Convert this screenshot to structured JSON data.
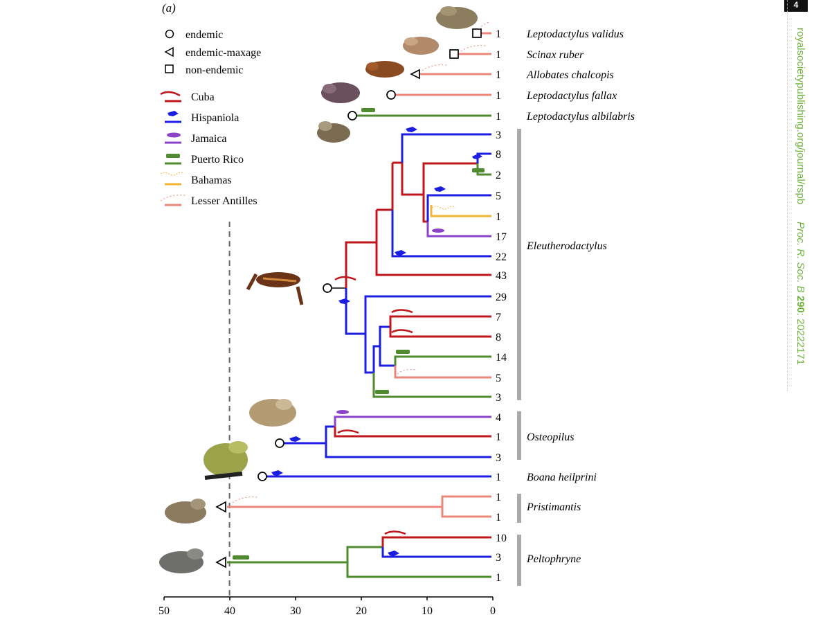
{
  "panel_label": "(a)",
  "page_number": "4",
  "side_text": {
    "site": "royalsocietypublishing.org/journal/rspb",
    "journal": "Proc. R. Soc. B",
    "volume": "290",
    "article": ": 20222171"
  },
  "legend": {
    "status": [
      {
        "symbol": "circle",
        "label": "endemic"
      },
      {
        "symbol": "triangle",
        "label": "endemic-maxage"
      },
      {
        "symbol": "square",
        "label": "non-endemic"
      }
    ],
    "regions": [
      {
        "label": "Cuba",
        "color": "#c0171c"
      },
      {
        "label": "Hispaniola",
        "color": "#1b1ee0"
      },
      {
        "label": "Jamaica",
        "color": "#8b43c8"
      },
      {
        "label": "Puerto Rico",
        "color": "#4f8a2e"
      },
      {
        "label": "Bahamas",
        "color": "#f2b632"
      },
      {
        "label": "Lesser Antilles",
        "color": "#e8877a"
      }
    ]
  },
  "axis": {
    "ticks": [
      "50",
      "40",
      "30",
      "20",
      "10",
      "0"
    ],
    "tick_values": [
      50,
      40,
      30,
      20,
      10,
      0
    ],
    "dashed_line_at": 40
  },
  "tips": [
    {
      "count": "1",
      "label": "Leptodactylus validus"
    },
    {
      "count": "1",
      "label": "Scinax ruber"
    },
    {
      "count": "1",
      "label": "Allobates chalcopis"
    },
    {
      "count": "1",
      "label": "Leptodactylus fallax"
    },
    {
      "count": "1",
      "label": "Leptodactylus albilabris"
    },
    {
      "count": "3",
      "label": ""
    },
    {
      "count": "8",
      "label": ""
    },
    {
      "count": "2",
      "label": ""
    },
    {
      "count": "5",
      "label": ""
    },
    {
      "count": "1",
      "label": ""
    },
    {
      "count": "17",
      "label": ""
    },
    {
      "count": "22",
      "label": ""
    },
    {
      "count": "43",
      "label": ""
    },
    {
      "count": "29",
      "label": ""
    },
    {
      "count": "7",
      "label": ""
    },
    {
      "count": "8",
      "label": ""
    },
    {
      "count": "14",
      "label": ""
    },
    {
      "count": "5",
      "label": ""
    },
    {
      "count": "3",
      "label": ""
    },
    {
      "count": "4",
      "label": ""
    },
    {
      "count": "1",
      "label": ""
    },
    {
      "count": "3",
      "label": ""
    },
    {
      "count": "1",
      "label": "Boana heilprini"
    },
    {
      "count": "1",
      "label": ""
    },
    {
      "count": "1",
      "label": ""
    },
    {
      "count": "10",
      "label": ""
    },
    {
      "count": "3",
      "label": ""
    },
    {
      "count": "1",
      "label": ""
    }
  ],
  "clades": [
    {
      "label": "Eleutherodactylus"
    },
    {
      "label": "Osteopilus"
    },
    {
      "label": "Pristimantis"
    },
    {
      "label": "Peltophryne"
    }
  ]
}
